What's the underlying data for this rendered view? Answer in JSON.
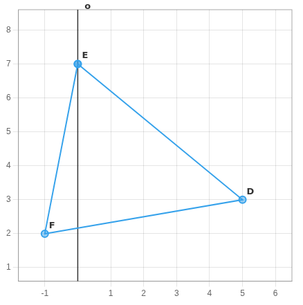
{
  "chart_data": {
    "type": "polygon",
    "x": [
      0,
      5,
      -1
    ],
    "values": [
      7,
      3,
      2
    ],
    "annotations": [
      {
        "text": "E",
        "x": 0,
        "y": 7
      },
      {
        "text": "D",
        "x": 5,
        "y": 3
      },
      {
        "text": "F",
        "x": -1,
        "y": 2
      },
      {
        "text": "o",
        "x": 0.08,
        "y": 8.45
      }
    ],
    "xlim": [
      -1.8,
      6.5
    ],
    "ylim": [
      0.6,
      8.6
    ],
    "xticks": [
      -1,
      1,
      2,
      3,
      4,
      5,
      6
    ],
    "yticks": [
      1,
      2,
      3,
      4,
      5,
      6,
      7,
      8
    ],
    "grid": true
  }
}
